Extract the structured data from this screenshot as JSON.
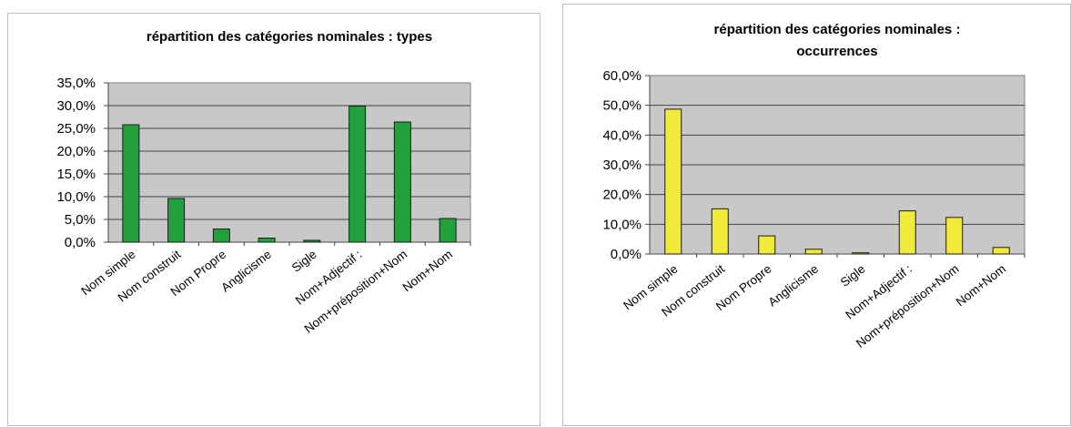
{
  "chart_data": [
    {
      "type": "bar",
      "title": "répartition des catégories nominales : types",
      "title_lines": [
        "répartition des catégories nominales : types"
      ],
      "categories": [
        "Nom simple",
        "Nom construit",
        "Nom Propre",
        "Anglicisme",
        "Sigle",
        "Nom+Adjectif :",
        "Nom+préposition+Nom",
        "Nom+Nom"
      ],
      "values": [
        25.8,
        9.6,
        2.9,
        0.9,
        0.4,
        29.9,
        26.4,
        5.2
      ],
      "ylim": [
        0,
        35
      ],
      "yticks": [
        "0,0%",
        "5,0%",
        "10,0%",
        "15,0%",
        "20,0%",
        "25,0%",
        "30,0%",
        "35,0%"
      ],
      "xlabel": "",
      "ylabel": "",
      "grid": true,
      "legend": "none",
      "bar_color": "#22a03c",
      "plot_background": "#c8c8c8"
    },
    {
      "type": "bar",
      "title": "répartition des catégories nominales : occurrences",
      "title_lines": [
        "répartition des catégories nominales :",
        "occurrences"
      ],
      "categories": [
        "Nom simple",
        "Nom construit",
        "Nom Propre",
        "Anglicisme",
        "Sigle",
        "Nom+Adjectif :",
        "Nom+préposition+Nom",
        "Nom+Nom"
      ],
      "values": [
        48.7,
        15.2,
        6.1,
        1.6,
        0.4,
        14.5,
        12.3,
        2.2
      ],
      "ylim": [
        0,
        60
      ],
      "yticks": [
        "0,0%",
        "10,0%",
        "20,0%",
        "30,0%",
        "40,0%",
        "50,0%",
        "60,0%"
      ],
      "xlabel": "",
      "ylabel": "",
      "grid": true,
      "legend": "none",
      "bar_color": "#f2ea3a",
      "plot_background": "#c8c8c8"
    }
  ]
}
